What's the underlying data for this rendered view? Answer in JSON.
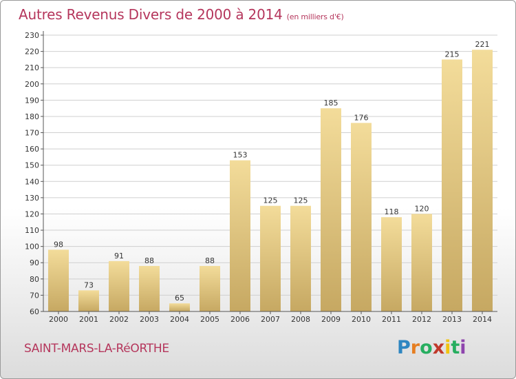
{
  "title": "Autres Revenus Divers de 2000 à 2014",
  "subtitle": "(en milliers d'€)",
  "city": "SAINT-MARS-LA-RéORTHE",
  "logo": {
    "letters": [
      "P",
      "r",
      "o",
      "x",
      "i",
      "t",
      "i"
    ],
    "colors": [
      "#2e86c1",
      "#e67e22",
      "#27ae60",
      "#c0392b",
      "#f1c40f",
      "#27ae60",
      "#8e44ad"
    ]
  },
  "colors": {
    "bar_top": "#f3dc9a",
    "bar_bottom": "#c6a862",
    "grid": "#cfcfcf",
    "axis": "#555555",
    "text": "#333333",
    "accent": "#b5365c"
  },
  "chart_data": {
    "type": "bar",
    "categories": [
      "2000",
      "2001",
      "2002",
      "2003",
      "2004",
      "2005",
      "2006",
      "2007",
      "2008",
      "2009",
      "2010",
      "2011",
      "2012",
      "2013",
      "2014"
    ],
    "values": [
      98,
      73,
      91,
      88,
      65,
      88,
      153,
      125,
      125,
      185,
      176,
      118,
      120,
      215,
      221
    ],
    "title": "Autres Revenus Divers de 2000 à 2014",
    "xlabel": "",
    "ylabel": "",
    "ylim": [
      60,
      230
    ],
    "yticks": [
      60,
      70,
      80,
      90,
      100,
      110,
      120,
      130,
      140,
      150,
      160,
      170,
      180,
      190,
      200,
      210,
      220,
      230
    ],
    "grid": true,
    "legend": "none"
  }
}
